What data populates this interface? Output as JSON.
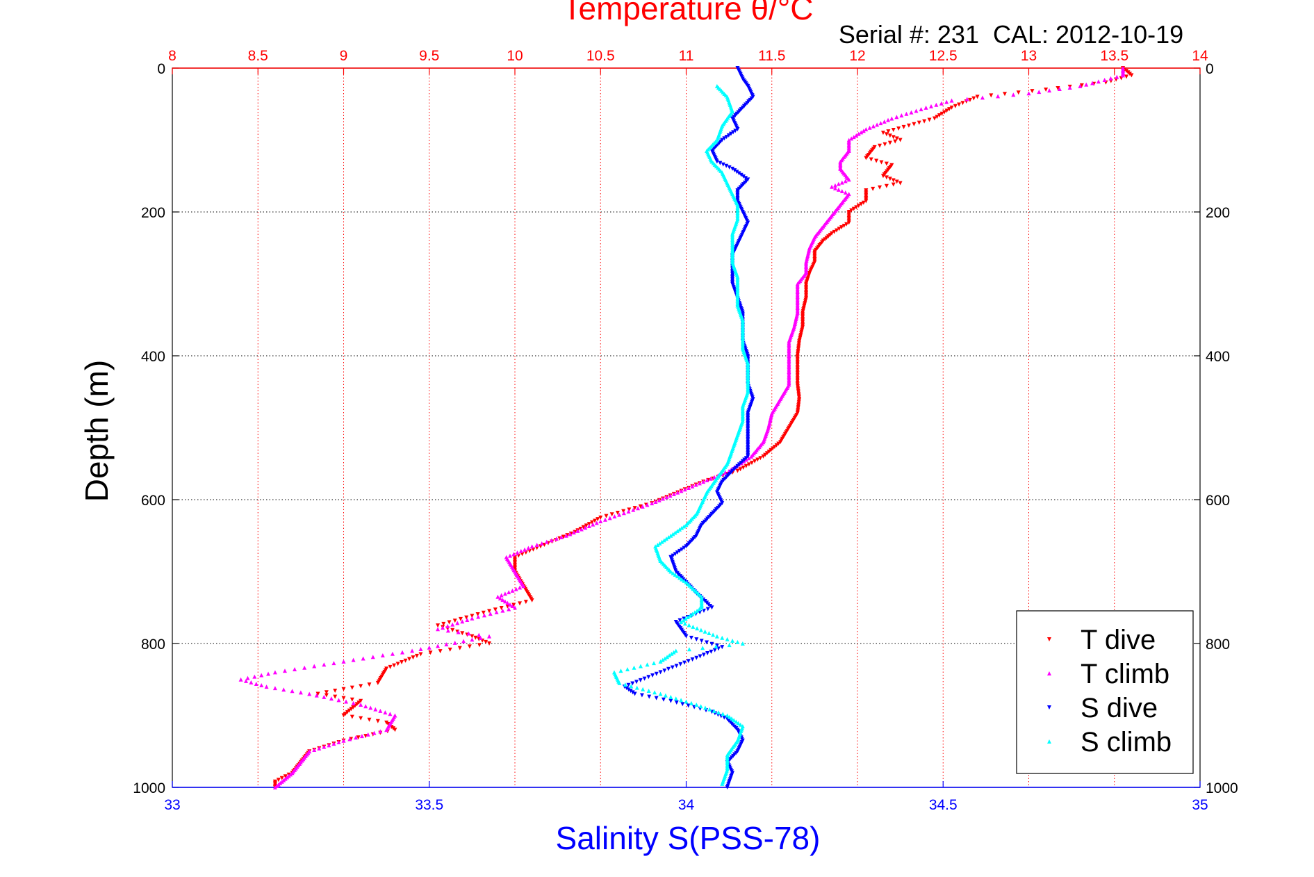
{
  "chart_data": {
    "type": "scatter",
    "title": "Temperature θ/°C",
    "subtitle": "Serial #: 231  CAL: 2012-10-19",
    "xlabel": "Salinity S(PSS-78)",
    "ylabel": "Depth (m)",
    "top_axis": {
      "label": "Temperature θ/°C",
      "range": [
        8,
        14
      ],
      "ticks": [
        "8",
        "8.5",
        "9",
        "9.5",
        "10",
        "10.5",
        "11",
        "11.5",
        "12",
        "12.5",
        "13",
        "13.5",
        "14"
      ],
      "color": "#ff0000"
    },
    "bottom_axis": {
      "label": "Salinity S(PSS-78)",
      "range": [
        33,
        35
      ],
      "ticks": [
        "33",
        "33.5",
        "34",
        "34.5",
        "35"
      ],
      "color": "#0000ff"
    },
    "y_axis": {
      "label": "Depth (m)",
      "range": [
        0,
        1000
      ],
      "reversed": true,
      "ticks": [
        "0",
        "200",
        "400",
        "600",
        "800",
        "1000"
      ]
    },
    "grid": true,
    "legend_position": "bottom-right",
    "series": [
      {
        "name": "T dive",
        "axis": "temperature",
        "color": "#ff0000",
        "marker": "triangle-down",
        "points": [
          [
            13.55,
            0
          ],
          [
            13.6,
            10
          ],
          [
            13.45,
            20
          ],
          [
            13.1,
            30
          ],
          [
            12.7,
            40
          ],
          [
            12.55,
            55
          ],
          [
            12.45,
            70
          ],
          [
            12.3,
            80
          ],
          [
            12.15,
            90
          ],
          [
            12.25,
            100
          ],
          [
            12.1,
            110
          ],
          [
            12.05,
            125
          ],
          [
            12.2,
            135
          ],
          [
            12.15,
            150
          ],
          [
            12.25,
            160
          ],
          [
            12.05,
            170
          ],
          [
            12.05,
            185
          ],
          [
            11.95,
            200
          ],
          [
            11.95,
            215
          ],
          [
            11.85,
            230
          ],
          [
            11.8,
            240
          ],
          [
            11.75,
            255
          ],
          [
            11.75,
            270
          ],
          [
            11.72,
            285
          ],
          [
            11.7,
            300
          ],
          [
            11.7,
            320
          ],
          [
            11.68,
            340
          ],
          [
            11.68,
            360
          ],
          [
            11.66,
            380
          ],
          [
            11.65,
            400
          ],
          [
            11.65,
            420
          ],
          [
            11.65,
            440
          ],
          [
            11.66,
            460
          ],
          [
            11.65,
            480
          ],
          [
            11.6,
            500
          ],
          [
            11.55,
            520
          ],
          [
            11.45,
            540
          ],
          [
            11.3,
            560
          ],
          [
            11.1,
            575
          ],
          [
            10.95,
            590
          ],
          [
            10.8,
            605
          ],
          [
            10.5,
            625
          ],
          [
            10.35,
            645
          ],
          [
            10.15,
            665
          ],
          [
            10.0,
            680
          ],
          [
            10.0,
            700
          ],
          [
            10.05,
            720
          ],
          [
            10.1,
            740
          ],
          [
            9.85,
            755
          ],
          [
            9.55,
            775
          ],
          [
            9.75,
            790
          ],
          [
            9.85,
            800
          ],
          [
            9.45,
            815
          ],
          [
            9.25,
            835
          ],
          [
            9.2,
            855
          ],
          [
            8.85,
            870
          ],
          [
            9.1,
            880
          ],
          [
            9.0,
            900
          ],
          [
            9.25,
            910
          ],
          [
            9.3,
            920
          ],
          [
            9.0,
            935
          ],
          [
            8.8,
            950
          ],
          [
            8.75,
            965
          ],
          [
            8.7,
            980
          ],
          [
            8.6,
            992
          ],
          [
            8.6,
            1000
          ]
        ]
      },
      {
        "name": "T climb",
        "axis": "temperature",
        "color": "#ff00ff",
        "marker": "triangle-up",
        "points": [
          [
            13.55,
            0
          ],
          [
            13.55,
            10
          ],
          [
            13.3,
            25
          ],
          [
            13.0,
            35
          ],
          [
            12.55,
            45
          ],
          [
            12.4,
            55
          ],
          [
            12.2,
            70
          ],
          [
            12.05,
            85
          ],
          [
            11.95,
            100
          ],
          [
            11.95,
            115
          ],
          [
            11.9,
            130
          ],
          [
            11.9,
            140
          ],
          [
            11.95,
            155
          ],
          [
            11.85,
            165
          ],
          [
            11.95,
            175
          ],
          [
            11.9,
            190
          ],
          [
            11.85,
            205
          ],
          [
            11.8,
            220
          ],
          [
            11.75,
            235
          ],
          [
            11.72,
            250
          ],
          [
            11.7,
            270
          ],
          [
            11.7,
            285
          ],
          [
            11.65,
            300
          ],
          [
            11.65,
            320
          ],
          [
            11.65,
            340
          ],
          [
            11.63,
            360
          ],
          [
            11.6,
            380
          ],
          [
            11.6,
            400
          ],
          [
            11.6,
            420
          ],
          [
            11.6,
            440
          ],
          [
            11.55,
            460
          ],
          [
            11.5,
            480
          ],
          [
            11.48,
            500
          ],
          [
            11.45,
            520
          ],
          [
            11.38,
            540
          ],
          [
            11.25,
            560
          ],
          [
            11.1,
            575
          ],
          [
            10.95,
            590
          ],
          [
            10.8,
            605
          ],
          [
            10.5,
            630
          ],
          [
            10.3,
            650
          ],
          [
            10.1,
            665
          ],
          [
            9.95,
            680
          ],
          [
            10.0,
            700
          ],
          [
            10.05,
            720
          ],
          [
            9.9,
            735
          ],
          [
            10.0,
            750
          ],
          [
            9.75,
            765
          ],
          [
            9.55,
            780
          ],
          [
            9.85,
            790
          ],
          [
            9.4,
            810
          ],
          [
            9.0,
            825
          ],
          [
            8.6,
            840
          ],
          [
            8.4,
            850
          ],
          [
            8.55,
            860
          ],
          [
            8.8,
            870
          ],
          [
            9.1,
            885
          ],
          [
            9.3,
            900
          ],
          [
            9.25,
            920
          ],
          [
            9.0,
            935
          ],
          [
            8.8,
            950
          ],
          [
            8.75,
            965
          ],
          [
            8.7,
            980
          ],
          [
            8.65,
            990
          ],
          [
            8.6,
            1000
          ]
        ]
      },
      {
        "name": "S dive",
        "axis": "salinity",
        "color": "#0000ff",
        "marker": "triangle-down",
        "points": [
          [
            34.1,
            0
          ],
          [
            34.11,
            15
          ],
          [
            34.12,
            25
          ],
          [
            34.13,
            40
          ],
          [
            34.11,
            55
          ],
          [
            34.09,
            70
          ],
          [
            34.1,
            85
          ],
          [
            34.07,
            100
          ],
          [
            34.05,
            115
          ],
          [
            34.06,
            130
          ],
          [
            34.09,
            140
          ],
          [
            34.12,
            155
          ],
          [
            34.1,
            170
          ],
          [
            34.1,
            185
          ],
          [
            34.11,
            200
          ],
          [
            34.12,
            215
          ],
          [
            34.11,
            230
          ],
          [
            34.1,
            245
          ],
          [
            34.09,
            260
          ],
          [
            34.09,
            280
          ],
          [
            34.09,
            300
          ],
          [
            34.1,
            320
          ],
          [
            34.11,
            340
          ],
          [
            34.11,
            360
          ],
          [
            34.11,
            380
          ],
          [
            34.12,
            400
          ],
          [
            34.12,
            420
          ],
          [
            34.12,
            440
          ],
          [
            34.13,
            460
          ],
          [
            34.12,
            480
          ],
          [
            34.12,
            500
          ],
          [
            34.12,
            520
          ],
          [
            34.12,
            540
          ],
          [
            34.09,
            560
          ],
          [
            34.07,
            575
          ],
          [
            34.06,
            590
          ],
          [
            34.07,
            605
          ],
          [
            34.05,
            620
          ],
          [
            34.03,
            635
          ],
          [
            34.02,
            650
          ],
          [
            34.0,
            665
          ],
          [
            33.97,
            680
          ],
          [
            33.98,
            700
          ],
          [
            34.0,
            715
          ],
          [
            34.02,
            730
          ],
          [
            34.05,
            750
          ],
          [
            33.98,
            770
          ],
          [
            34.0,
            790
          ],
          [
            34.07,
            805
          ],
          [
            34.02,
            820
          ],
          [
            33.95,
            840
          ],
          [
            33.88,
            860
          ],
          [
            33.9,
            870
          ],
          [
            33.97,
            880
          ],
          [
            34.05,
            895
          ],
          [
            34.08,
            905
          ],
          [
            34.1,
            920
          ],
          [
            34.11,
            935
          ],
          [
            34.1,
            950
          ],
          [
            34.08,
            965
          ],
          [
            34.09,
            980
          ],
          [
            34.08,
            1000
          ]
        ]
      },
      {
        "name": "S climb",
        "axis": "salinity",
        "color": "#00ffff",
        "marker": "triangle-up",
        "points": [
          [
            34.06,
            25
          ],
          [
            34.08,
            40
          ],
          [
            34.09,
            60
          ],
          [
            34.07,
            80
          ],
          [
            34.06,
            100
          ],
          [
            34.04,
            115
          ],
          [
            34.05,
            130
          ],
          [
            34.07,
            145
          ],
          [
            34.08,
            160
          ],
          [
            34.09,
            175
          ],
          [
            34.1,
            190
          ],
          [
            34.1,
            210
          ],
          [
            34.09,
            230
          ],
          [
            34.09,
            250
          ],
          [
            34.09,
            270
          ],
          [
            34.1,
            290
          ],
          [
            34.1,
            310
          ],
          [
            34.1,
            330
          ],
          [
            34.11,
            350
          ],
          [
            34.11,
            370
          ],
          [
            34.11,
            390
          ],
          [
            34.12,
            410
          ],
          [
            34.12,
            430
          ],
          [
            34.12,
            450
          ],
          [
            34.11,
            470
          ],
          [
            34.11,
            490
          ],
          [
            34.1,
            510
          ],
          [
            34.09,
            530
          ],
          [
            34.08,
            550
          ],
          [
            34.06,
            570
          ],
          [
            34.04,
            590
          ],
          [
            34.03,
            605
          ],
          [
            34.02,
            620
          ],
          [
            34.0,
            635
          ],
          [
            33.97,
            650
          ],
          [
            33.94,
            665
          ],
          [
            33.95,
            685
          ],
          [
            33.97,
            700
          ],
          [
            34.0,
            715
          ],
          [
            34.03,
            735
          ],
          [
            34.03,
            750
          ],
          [
            33.99,
            770
          ],
          [
            34.06,
            790
          ],
          [
            34.11,
            800
          ],
          [
            33.98,
            810
          ],
          [
            33.95,
            825
          ],
          [
            33.86,
            840
          ],
          [
            33.87,
            855
          ],
          [
            33.95,
            870
          ],
          [
            34.02,
            885
          ],
          [
            34.08,
            900
          ],
          [
            34.11,
            915
          ],
          [
            34.1,
            935
          ],
          [
            34.08,
            955
          ],
          [
            34.08,
            975
          ],
          [
            34.07,
            995
          ]
        ]
      }
    ],
    "legend": [
      "T dive",
      "T climb",
      "S dive",
      "S climb"
    ]
  }
}
